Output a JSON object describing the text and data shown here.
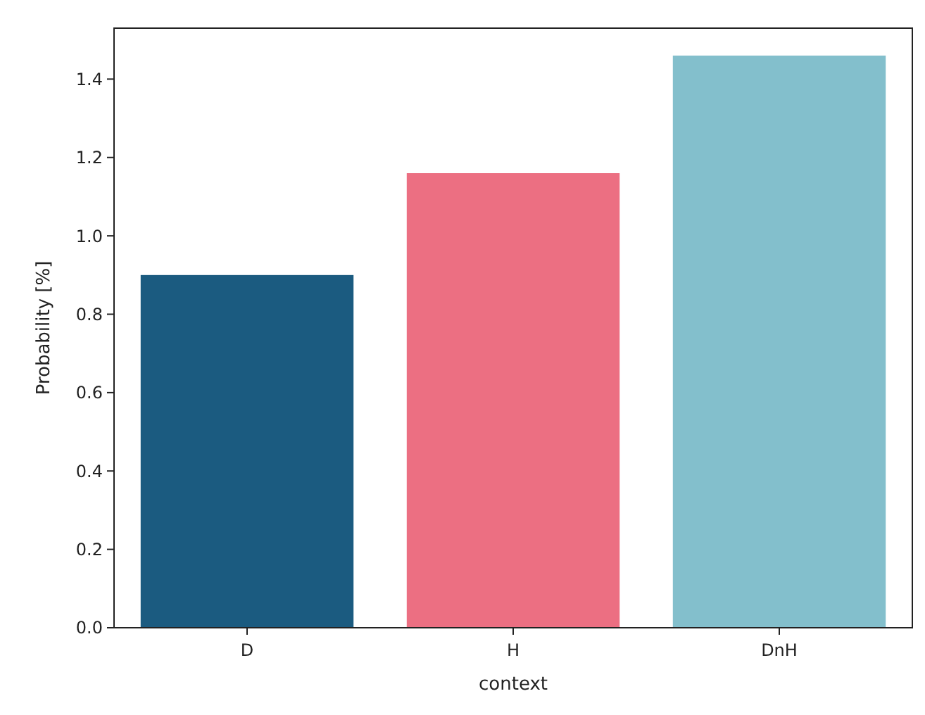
{
  "chart_data": {
    "type": "bar",
    "xlabel": "context",
    "ylabel": "Probability [%]",
    "categories": [
      "D",
      "H",
      "DnH"
    ],
    "values": [
      0.9,
      1.16,
      1.46
    ],
    "colors": [
      "#1b5b80",
      "#ec6f82",
      "#83bfcc"
    ],
    "ylim": [
      0,
      1.53
    ],
    "yticks": [
      {
        "value": 0,
        "label": "0.0"
      },
      {
        "value": 0.2,
        "label": "0.2"
      },
      {
        "value": 0.4,
        "label": "0.4"
      },
      {
        "value": 0.6,
        "label": "0.6"
      },
      {
        "value": 0.8,
        "label": "0.8"
      },
      {
        "value": 1,
        "label": "1.0"
      },
      {
        "value": 1.2,
        "label": "1.2"
      },
      {
        "value": 1.4,
        "label": "1.4"
      }
    ],
    "grid": false
  }
}
